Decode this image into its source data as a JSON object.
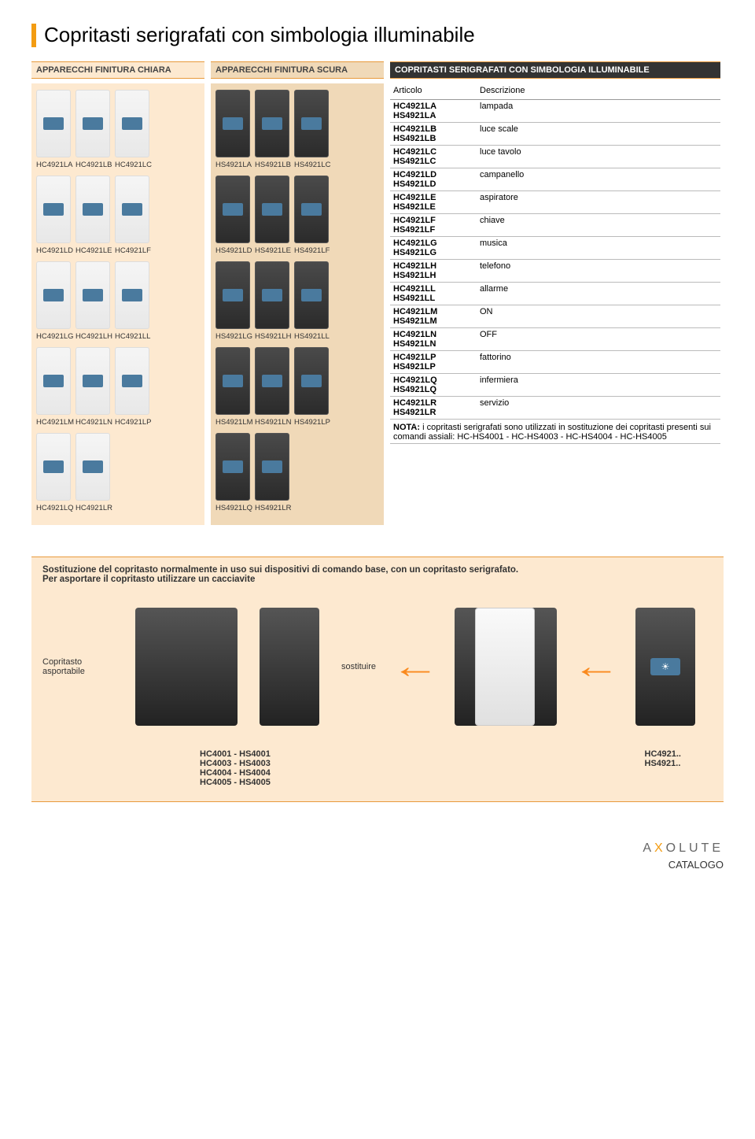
{
  "page": {
    "title": "Copritasti serigrafati con simbologia illuminabile",
    "brand": "AXOLUTE",
    "footer_label": "CATALOGO",
    "accent_color": "#f39c12",
    "bg_light": "#fde9d0",
    "bg_dark": "#f0d9b8"
  },
  "headers": {
    "chiara": "APPARECCHI FINITURA CHIARA",
    "scura": "APPARECCHI FINITURA SCURA",
    "table": "COPRITASTI SERIGRAFATI CON SIMBOLOGIA ILLUMINABILE"
  },
  "light_groups": [
    {
      "labels": [
        "HC4921LA",
        "HC4921LB",
        "HC4921LC"
      ]
    },
    {
      "labels": [
        "HC4921LD",
        "HC4921LE",
        "HC4921LF"
      ]
    },
    {
      "labels": [
        "HC4921LG",
        "HC4921LH",
        "HC4921LL"
      ]
    },
    {
      "labels": [
        "HC4921LM",
        "HC4921LN",
        "HC4921LP"
      ]
    },
    {
      "labels": [
        "HC4921LQ",
        "HC4921LR"
      ]
    }
  ],
  "dark_groups": [
    {
      "labels": [
        "HS4921LA",
        "HS4921LB",
        "HS4921LC"
      ]
    },
    {
      "labels": [
        "HS4921LD",
        "HS4921LE",
        "HS4921LF"
      ]
    },
    {
      "labels": [
        "HS4921LG",
        "HS4921LH",
        "HS4921LL"
      ]
    },
    {
      "labels": [
        "HS4921LM",
        "HS4921LN",
        "HS4921LP"
      ]
    },
    {
      "labels": [
        "HS4921LQ",
        "HS4921LR"
      ]
    }
  ],
  "table": {
    "col_articolo": "Articolo",
    "col_descrizione": "Descrizione",
    "rows": [
      {
        "codes": "HC4921LA\nHS4921LA",
        "desc": "lampada"
      },
      {
        "codes": "HC4921LB\nHS4921LB",
        "desc": "luce scale"
      },
      {
        "codes": "HC4921LC\nHS4921LC",
        "desc": "luce tavolo"
      },
      {
        "codes": "HC4921LD\nHS4921LD",
        "desc": "campanello"
      },
      {
        "codes": "HC4921LE\nHS4921LE",
        "desc": "aspiratore"
      },
      {
        "codes": "HC4921LF\nHS4921LF",
        "desc": "chiave"
      },
      {
        "codes": "HC4921LG\nHS4921LG",
        "desc": "musica"
      },
      {
        "codes": "HC4921LH\nHS4921LH",
        "desc": "telefono"
      },
      {
        "codes": "HC4921LL\nHS4921LL",
        "desc": "allarme"
      },
      {
        "codes": "HC4921LM\nHS4921LM",
        "desc": "ON"
      },
      {
        "codes": "HC4921LN\nHS4921LN",
        "desc": "OFF"
      },
      {
        "codes": "HC4921LP\nHS4921LP",
        "desc": "fattorino"
      },
      {
        "codes": "HC4921LQ\nHS4921LQ",
        "desc": "infermiera"
      },
      {
        "codes": "HC4921LR\nHS4921LR",
        "desc": "servizio"
      }
    ],
    "note_label": "NOTA:",
    "note_text": "i copritasti serigrafati sono utilizzati in sostituzione dei copritasti presenti sui comandi assiali: HC-HS4001 - HC-HS4003 - HC-HS4004 - HC-HS4005"
  },
  "diagram": {
    "intro1": "Sostituzione del copritasto normalmente in uso sui dispositivi di comando base, con un copritasto serigrafato.",
    "intro2": "Per asportare il copritasto utilizzare un cacciavite",
    "label_left": "Copritasto asportabile",
    "label_mid": "sostituire",
    "codes_left": "HC4001 - HS4001\nHC4003 - HS4003\nHC4004 - HS4004\nHC4005 - HS4005",
    "codes_right": "HC4921..\nHS4921.."
  }
}
